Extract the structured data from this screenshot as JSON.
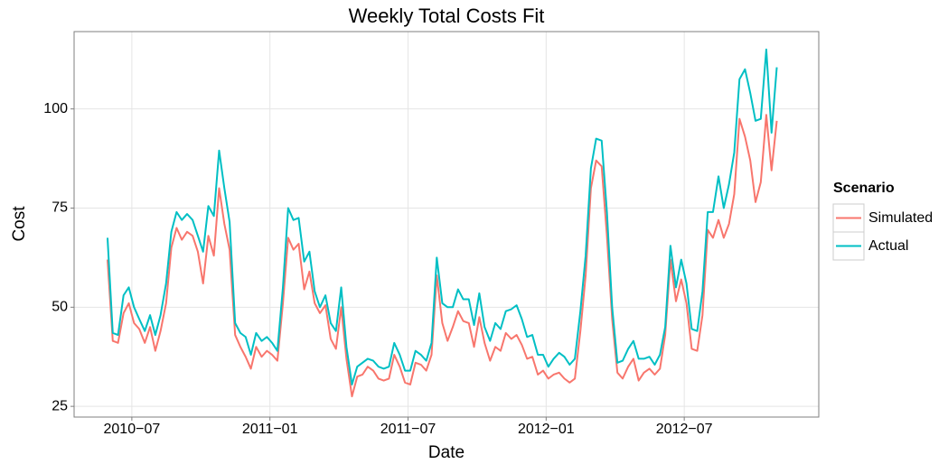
{
  "chart_data": {
    "type": "line",
    "title": "Weekly Total Costs Fit",
    "x_label": "Date",
    "y_label": "Cost",
    "legend_title": "Scenario",
    "legend": "right",
    "grid": true,
    "x": [
      2010.412,
      2010.431,
      2010.45,
      2010.47,
      2010.489,
      2010.508,
      2010.527,
      2010.547,
      2010.566,
      2010.585,
      2010.604,
      2010.624,
      2010.643,
      2010.662,
      2010.681,
      2010.7,
      2010.72,
      2010.739,
      2010.758,
      2010.777,
      2010.797,
      2010.816,
      2010.835,
      2010.854,
      2010.874,
      2010.893,
      2010.912,
      2010.931,
      2010.95,
      2010.97,
      2010.989,
      2011.008,
      2011.027,
      2011.047,
      2011.066,
      2011.085,
      2011.104,
      2011.124,
      2011.143,
      2011.162,
      2011.181,
      2011.201,
      2011.22,
      2011.239,
      2011.258,
      2011.277,
      2011.297,
      2011.316,
      2011.335,
      2011.354,
      2011.374,
      2011.393,
      2011.412,
      2011.431,
      2011.45,
      2011.47,
      2011.489,
      2011.508,
      2011.527,
      2011.547,
      2011.566,
      2011.585,
      2011.604,
      2011.624,
      2011.643,
      2011.662,
      2011.681,
      2011.7,
      2011.72,
      2011.739,
      2011.758,
      2011.777,
      2011.797,
      2011.816,
      2011.835,
      2011.854,
      2011.874,
      2011.893,
      2011.912,
      2011.931,
      2011.95,
      2011.97,
      2011.989,
      2012.008,
      2012.027,
      2012.047,
      2012.066,
      2012.085,
      2012.104,
      2012.124,
      2012.143,
      2012.162,
      2012.181,
      2012.201,
      2012.22,
      2012.239,
      2012.258,
      2012.277,
      2012.297,
      2012.316,
      2012.335,
      2012.354,
      2012.374,
      2012.393,
      2012.412,
      2012.431,
      2012.45,
      2012.47,
      2012.489,
      2012.508,
      2012.527,
      2012.547,
      2012.566,
      2012.585,
      2012.604,
      2012.624,
      2012.643,
      2012.662,
      2012.681,
      2012.7,
      2012.72,
      2012.739,
      2012.758,
      2012.777,
      2012.797,
      2012.816,
      2012.835
    ],
    "series": [
      {
        "name": "Simulated",
        "color": "#F8766D",
        "values": [
          62,
          41.5,
          41,
          48.5,
          51,
          46,
          44.5,
          41,
          45,
          39,
          44,
          51,
          65,
          70,
          67,
          69,
          68,
          64,
          56,
          68,
          63,
          80,
          71,
          64.5,
          43,
          40,
          37.5,
          34.5,
          40,
          37.5,
          39,
          38,
          36.5,
          51,
          67.5,
          64.5,
          66,
          54.5,
          59,
          51,
          48.5,
          50.5,
          42,
          39.5,
          50,
          37,
          27.5,
          32.5,
          33,
          35,
          34,
          32,
          31.5,
          32,
          38,
          35,
          31,
          30.5,
          36,
          35.5,
          34,
          38,
          58,
          46,
          41.5,
          45,
          49,
          46.5,
          46,
          40,
          47.5,
          41,
          36.5,
          40,
          39,
          43.5,
          42,
          43,
          40.5,
          37,
          37.5,
          33,
          34,
          32,
          33,
          33.5,
          32,
          31,
          32,
          44,
          58,
          80,
          87,
          85.5,
          68,
          47,
          33.5,
          32,
          35,
          37,
          31.5,
          33.5,
          34.5,
          33,
          34.5,
          43,
          62,
          51.5,
          57,
          51,
          39.5,
          39,
          48,
          69.5,
          67.5,
          72,
          67.5,
          71,
          78.5,
          97.5,
          93,
          87,
          76.5,
          81.5,
          98.5,
          84.5,
          97
        ]
      },
      {
        "name": "Actual",
        "color": "#00BFC4",
        "values": [
          67.5,
          43.5,
          43,
          53,
          55,
          50,
          47,
          44,
          48,
          43,
          48,
          56,
          69,
          74,
          72,
          73.5,
          72,
          68,
          64,
          75.5,
          73,
          89.5,
          80,
          71.5,
          46,
          43.5,
          42.5,
          38,
          43.5,
          41.5,
          42.5,
          41,
          39,
          55,
          75,
          72,
          72.5,
          61.5,
          64,
          54,
          50,
          53,
          46,
          44,
          55,
          40,
          30.5,
          35,
          36,
          37,
          36.5,
          35,
          34.5,
          35,
          41,
          38,
          34,
          34,
          39,
          38,
          36.5,
          41,
          62.5,
          51,
          50,
          50,
          54.5,
          52,
          52,
          45.5,
          53.5,
          45,
          41.5,
          46,
          44.5,
          49,
          49.5,
          50.5,
          47,
          42.5,
          43,
          38,
          38,
          35,
          37,
          38.5,
          37.5,
          35.5,
          37,
          49,
          63,
          85,
          92.5,
          92,
          74,
          50,
          36,
          36.5,
          39.5,
          41.5,
          37,
          37,
          37.5,
          35.5,
          38,
          45,
          65.5,
          55,
          62,
          56,
          44.5,
          44,
          54,
          74,
          74,
          83,
          75,
          81,
          89,
          107.5,
          110,
          104,
          97,
          97.5,
          115,
          94,
          110.5
        ]
      }
    ],
    "xlim": [
      2010.291,
      2012.987
    ],
    "xticks": [
      {
        "value": 2010.5,
        "label": "2010−07"
      },
      {
        "value": 2011.0,
        "label": "2011−01"
      },
      {
        "value": 2011.5,
        "label": "2011−07"
      },
      {
        "value": 2012.0,
        "label": "2012−01"
      },
      {
        "value": 2012.5,
        "label": "2012−07"
      }
    ],
    "ylim": [
      22.3,
      119.5
    ],
    "yticks": [
      25,
      50,
      75,
      100
    ]
  }
}
